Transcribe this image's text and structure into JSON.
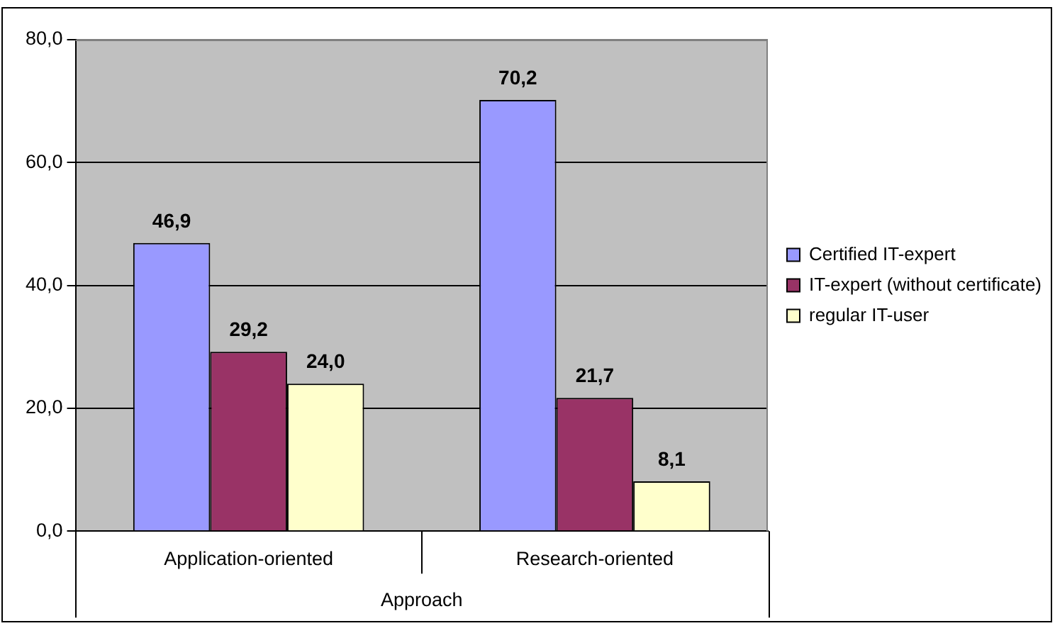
{
  "chart_data": {
    "type": "bar",
    "xlabel": "Approach",
    "categories": [
      "Application-oriented",
      "Research-oriented"
    ],
    "series": [
      {
        "name": "Certified IT-expert",
        "color": "#9999ff",
        "values": [
          46.9,
          70.2
        ],
        "value_labels": [
          "46,9",
          "70,2"
        ]
      },
      {
        "name": "IT-expert (without certificate)",
        "color": "#993366",
        "values": [
          29.2,
          21.7
        ],
        "value_labels": [
          "29,2",
          "21,7"
        ]
      },
      {
        "name": "regular IT-user",
        "color": "#ffffcc",
        "values": [
          24.0,
          8.1
        ],
        "value_labels": [
          "24,0",
          "8,1"
        ]
      }
    ],
    "ylim": [
      0,
      80
    ],
    "yticks": [
      {
        "value": 0,
        "label": "0,0"
      },
      {
        "value": 20,
        "label": "20,0"
      },
      {
        "value": 40,
        "label": "40,0"
      },
      {
        "value": 60,
        "label": "60,0"
      },
      {
        "value": 80,
        "label": "80,0"
      }
    ],
    "grid": "y",
    "legend": "right"
  }
}
